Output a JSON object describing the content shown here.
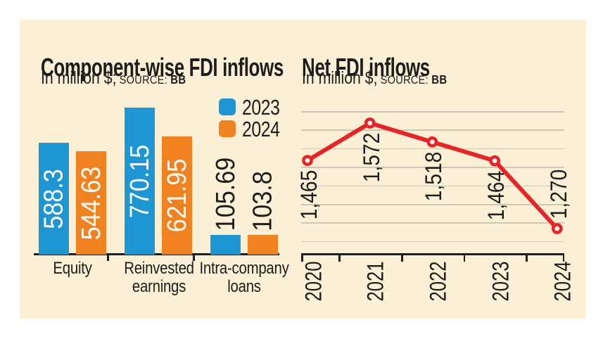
{
  "colors": {
    "background_panel": "#fbf0d5",
    "text": "#1d1d1b",
    "grid": "#ccc8b8",
    "series_2023_blue": "#1e96d4",
    "series_2024_orange": "#f0831f",
    "line_red": "#e52528",
    "bar_inside_label": "#ffffff"
  },
  "chart_data": [
    {
      "type": "bar",
      "title": "Component-wise FDI inflows",
      "unit_label": "In million $;",
      "source_label": "SOURCE:",
      "source_value": "BB",
      "categories": [
        "Equity",
        "Reinvested earnings",
        "Intra-company loans"
      ],
      "series": [
        {
          "name": "2023",
          "color": "#1e96d4",
          "values": [
            588.3,
            770.15,
            105.69
          ]
        },
        {
          "name": "2024",
          "color": "#f0831f",
          "values": [
            544.63,
            621.95,
            103.8
          ]
        }
      ],
      "value_label_format": "raw",
      "legend_position": "top-right",
      "grid": false,
      "ylim": [
        0,
        800
      ]
    },
    {
      "type": "line",
      "title": "Net FDI inflows",
      "unit_label": "In million $;",
      "source_label": "SOURCE:",
      "source_value": "BB",
      "x": [
        "2020",
        "2021",
        "2022",
        "2023",
        "2024"
      ],
      "values": [
        1465,
        1572,
        1518,
        1464,
        1270
      ],
      "value_labels": [
        "1,465",
        "1,572",
        "1,518",
        "1,464",
        "1,270"
      ],
      "line_color": "#e52528",
      "marker": "circle-white-fill-red-ring",
      "grid": true,
      "gridline_count": 8,
      "ylim": [
        1230,
        1610
      ]
    }
  ]
}
